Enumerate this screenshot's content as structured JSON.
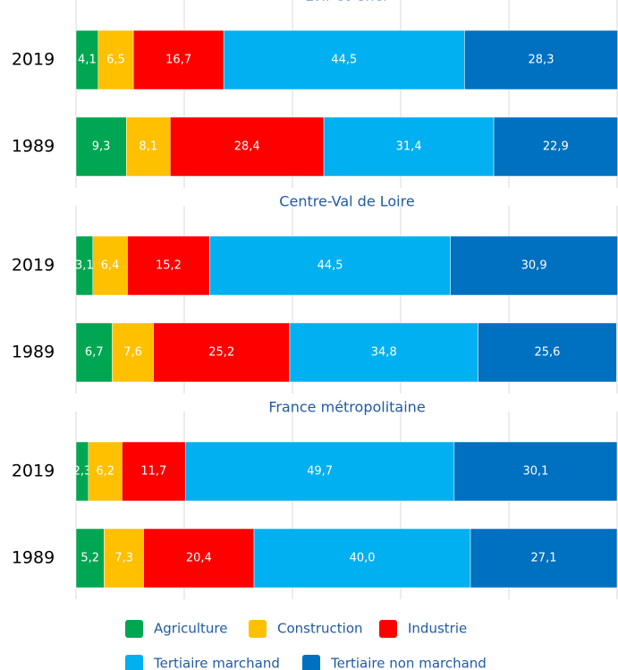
{
  "chart_data": [
    {
      "type": "bar",
      "orientation": "horizontal",
      "stacked": true,
      "title": "Loir-et-Cher",
      "categories": [
        "2019",
        "1989"
      ],
      "xlim": [
        0,
        100
      ],
      "xticks": [
        0,
        20,
        40,
        60,
        80,
        100
      ],
      "grid": true,
      "series": [
        {
          "name": "Agriculture",
          "color": "#00a651",
          "values": [
            4.1,
            9.3
          ],
          "value_labels": [
            "4,1",
            "9,3"
          ]
        },
        {
          "name": "Construction",
          "color": "#ffc000",
          "values": [
            6.5,
            8.1
          ],
          "value_labels": [
            "6,5",
            "8,1"
          ]
        },
        {
          "name": "Industrie",
          "color": "#ff0000",
          "values": [
            16.7,
            28.4
          ],
          "value_labels": [
            "16,7",
            "28,4"
          ]
        },
        {
          "name": "Tertiaire marchand",
          "color": "#00b0f0",
          "values": [
            44.5,
            31.4
          ],
          "value_labels": [
            "44,5",
            "31,4"
          ]
        },
        {
          "name": "Tertiaire non marchand",
          "color": "#0070c0",
          "values": [
            28.3,
            22.9
          ],
          "value_labels": [
            "28,3",
            "22,9"
          ]
        }
      ]
    },
    {
      "type": "bar",
      "orientation": "horizontal",
      "stacked": true,
      "title": "Centre-Val de Loire",
      "categories": [
        "2019",
        "1989"
      ],
      "xlim": [
        0,
        100
      ],
      "xticks": [
        0,
        20,
        40,
        60,
        80,
        100
      ],
      "grid": true,
      "series": [
        {
          "name": "Agriculture",
          "color": "#00a651",
          "values": [
            3.1,
            6.7
          ],
          "value_labels": [
            "3,1",
            "6,7"
          ]
        },
        {
          "name": "Construction",
          "color": "#ffc000",
          "values": [
            6.4,
            7.6
          ],
          "value_labels": [
            "6,4",
            "7,6"
          ]
        },
        {
          "name": "Industrie",
          "color": "#ff0000",
          "values": [
            15.2,
            25.2
          ],
          "value_labels": [
            "15,2",
            "25,2"
          ]
        },
        {
          "name": "Tertiaire marchand",
          "color": "#00b0f0",
          "values": [
            44.5,
            34.8
          ],
          "value_labels": [
            "44,5",
            "34,8"
          ]
        },
        {
          "name": "Tertiaire non marchand",
          "color": "#0070c0",
          "values": [
            30.9,
            25.6
          ],
          "value_labels": [
            "30,9",
            "25,6"
          ]
        }
      ]
    },
    {
      "type": "bar",
      "orientation": "horizontal",
      "stacked": true,
      "title": "France métropolitaine",
      "categories": [
        "2019",
        "1989"
      ],
      "xlim": [
        0,
        100
      ],
      "xticks": [
        0,
        20,
        40,
        60,
        80,
        100
      ],
      "grid": true,
      "series": [
        {
          "name": "Agriculture",
          "color": "#00a651",
          "values": [
            2.3,
            5.2
          ],
          "value_labels": [
            "2,3",
            "5,2"
          ]
        },
        {
          "name": "Construction",
          "color": "#ffc000",
          "values": [
            6.2,
            7.3
          ],
          "value_labels": [
            "6,2",
            "7,3"
          ]
        },
        {
          "name": "Industrie",
          "color": "#ff0000",
          "values": [
            11.7,
            20.4
          ],
          "value_labels": [
            "11,7",
            "20,4"
          ]
        },
        {
          "name": "Tertiaire marchand",
          "color": "#00b0f0",
          "values": [
            49.7,
            40.0
          ],
          "value_labels": [
            "49,7",
            "40,0"
          ]
        },
        {
          "name": "Tertiaire non marchand",
          "color": "#0070c0",
          "values": [
            30.1,
            27.1
          ],
          "value_labels": [
            "30,1",
            "27,1"
          ]
        }
      ]
    }
  ]
}
